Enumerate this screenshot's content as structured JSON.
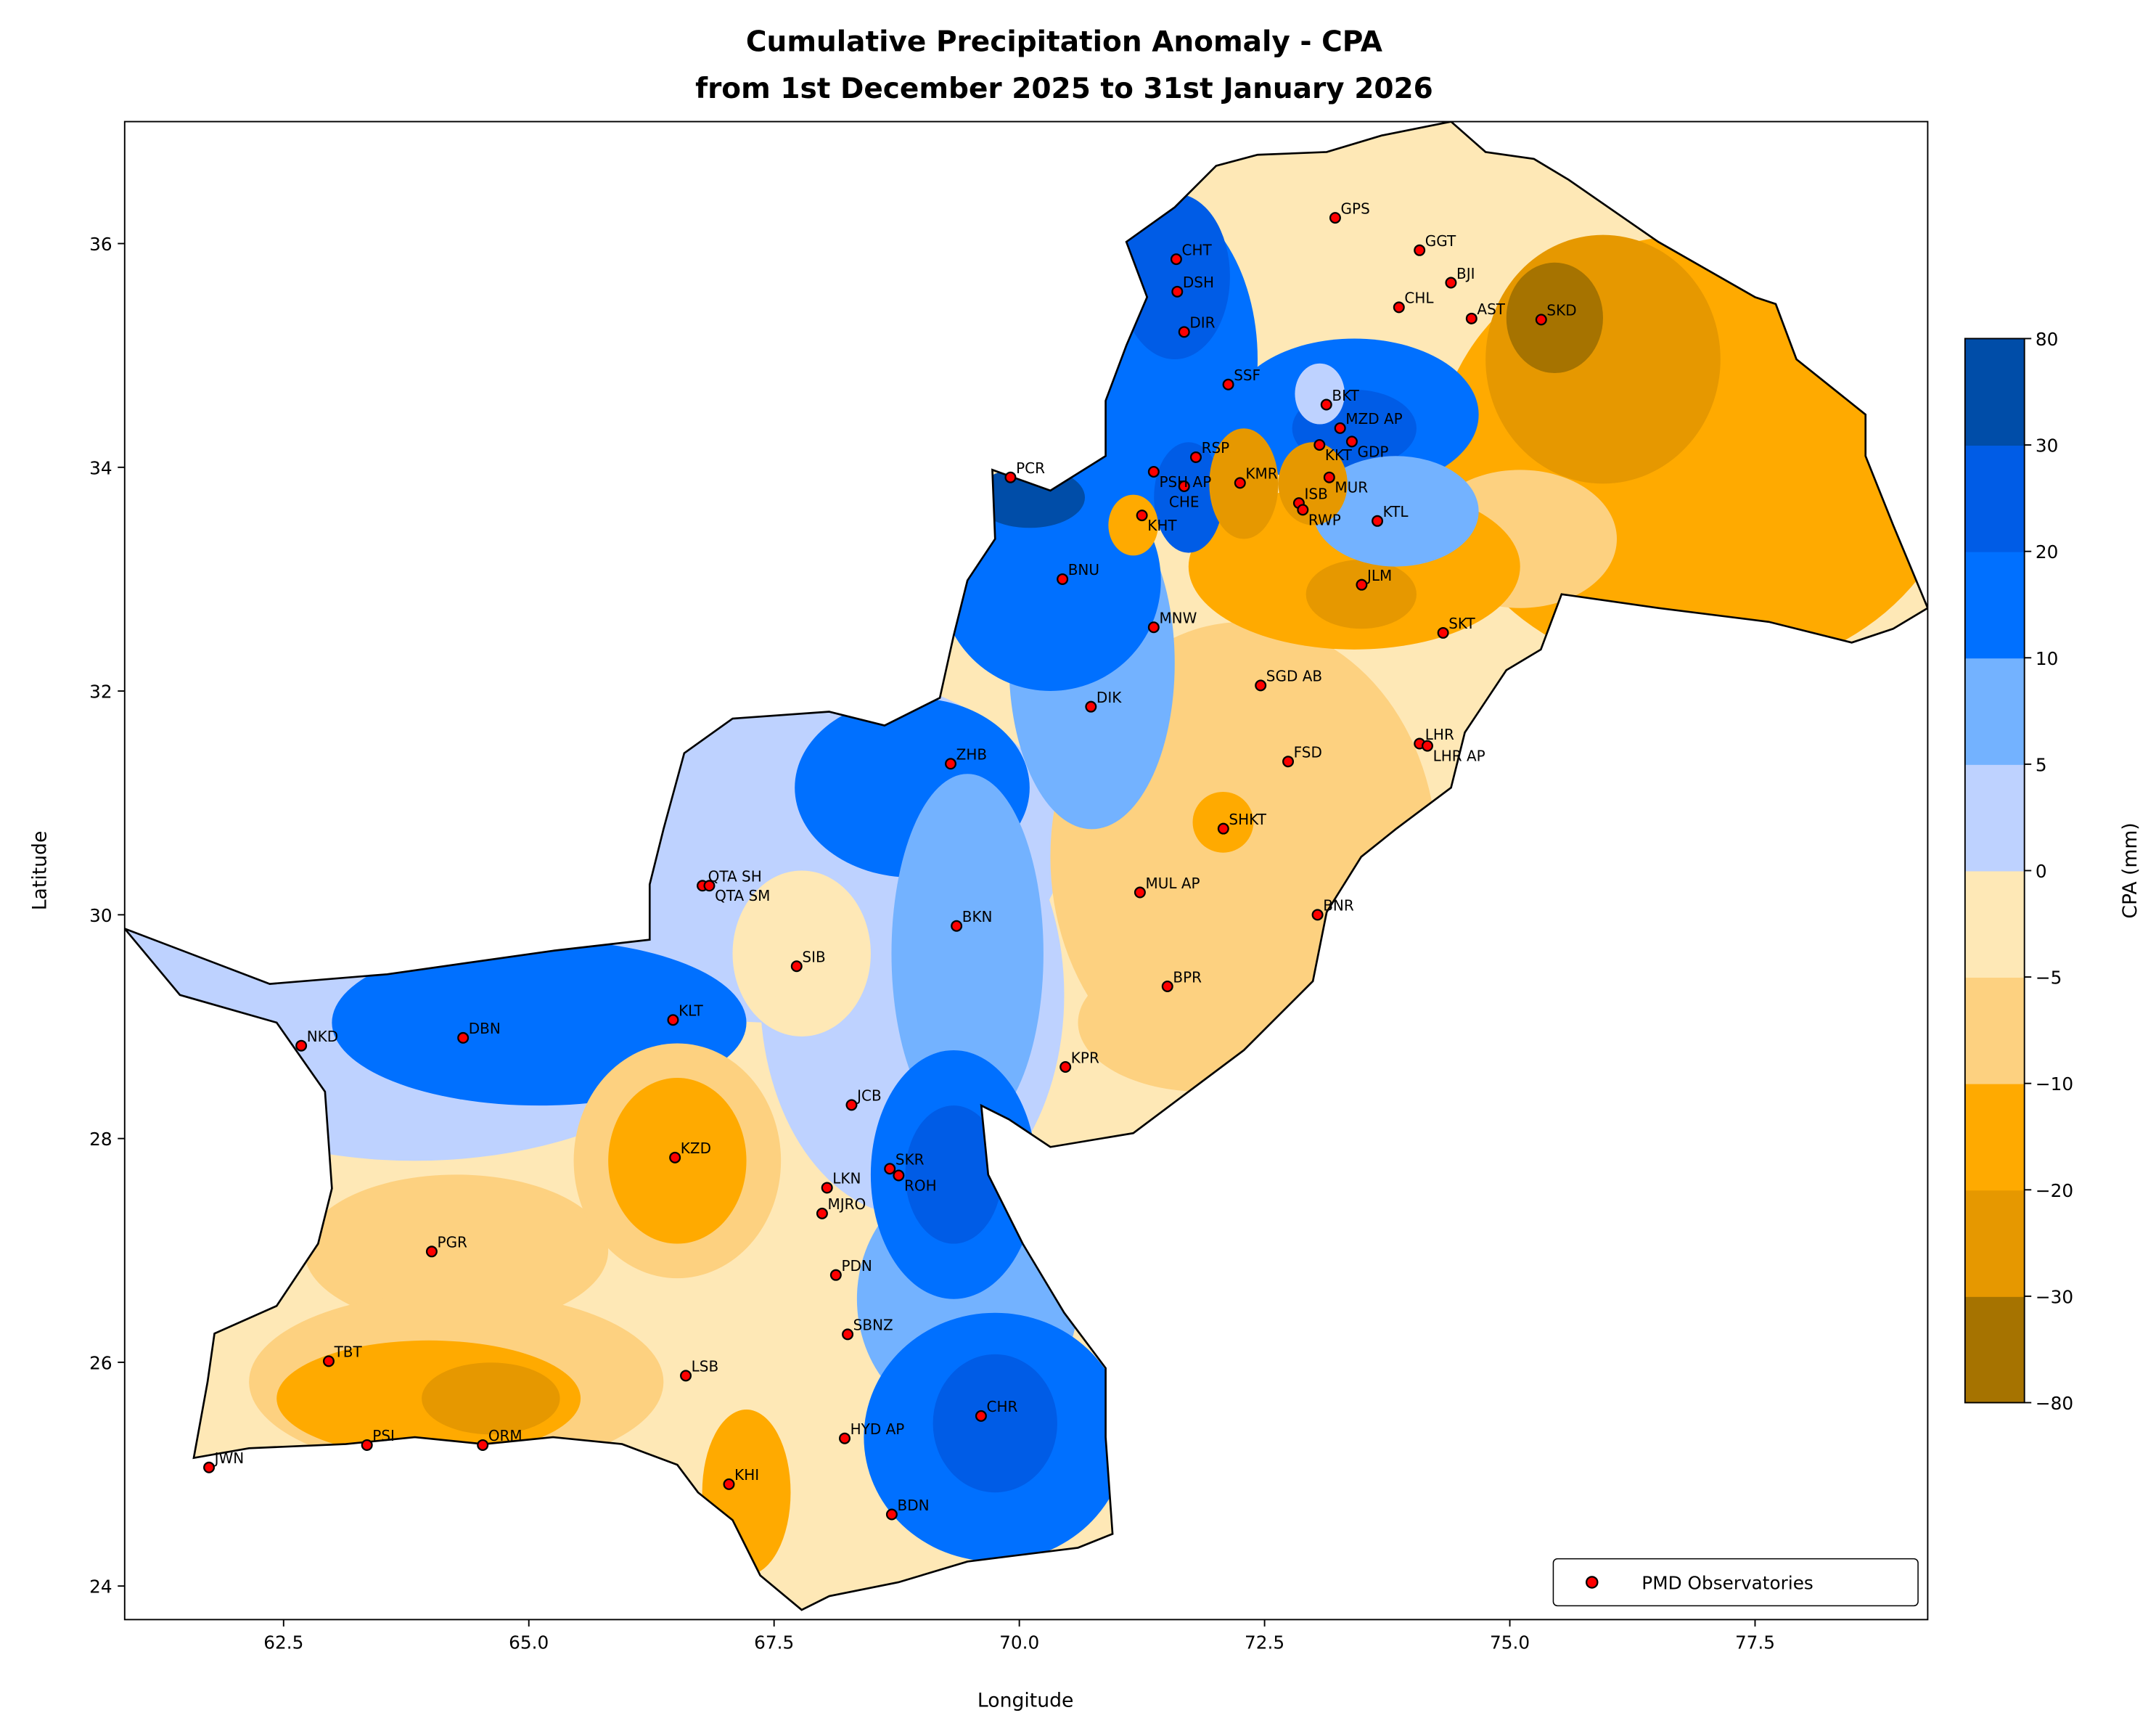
{
  "chart_data": {
    "type": "map-contour",
    "title": "Cumulative Precipitation Anomaly - CPA",
    "subtitle": "from 1st December 2025 to 31st January 2026",
    "xlabel": "Longitude",
    "ylabel": "Latitude",
    "xlim": [
      60.88,
      79.26
    ],
    "ylim": [
      23.7,
      37.09
    ],
    "xticks": [
      "62.5",
      "65.0",
      "67.5",
      "70.0",
      "72.5",
      "75.0",
      "77.5"
    ],
    "yticks": [
      "24",
      "26",
      "28",
      "30",
      "32",
      "34",
      "36"
    ],
    "grid": false,
    "colorbar": {
      "label": "CPA (mm)",
      "levels": [
        -80,
        -30,
        -20,
        -10,
        -5,
        0,
        5,
        10,
        20,
        30,
        80
      ],
      "tick_labels": [
        "−80",
        "−30",
        "−20",
        "−10",
        "−5",
        "0",
        "5",
        "10",
        "20",
        "30",
        "80"
      ],
      "colors": [
        "#a67300",
        "#e69800",
        "#ffaa00",
        "#fdd180",
        "#fee8b6",
        "#bed2ff",
        "#73b2ff",
        "#0070ff",
        "#005ce6",
        "#004da8"
      ]
    },
    "legend": {
      "label": "PMD Observatories",
      "position": "lower-right",
      "marker_color": "#ff0000"
    },
    "stations": [
      {
        "code": "GPS",
        "lon": 73.22,
        "lat": 36.23
      },
      {
        "code": "GGT",
        "lon": 74.08,
        "lat": 35.94
      },
      {
        "code": "BJI",
        "lon": 74.4,
        "lat": 35.65
      },
      {
        "code": "CHL",
        "lon": 73.87,
        "lat": 35.43
      },
      {
        "code": "AST",
        "lon": 74.61,
        "lat": 35.33
      },
      {
        "code": "SKD",
        "lon": 75.32,
        "lat": 35.32
      },
      {
        "code": "CHT",
        "lon": 71.6,
        "lat": 35.86
      },
      {
        "code": "DSH",
        "lon": 71.61,
        "lat": 35.57
      },
      {
        "code": "DIR",
        "lon": 71.68,
        "lat": 35.21
      },
      {
        "code": "SSF",
        "lon": 72.13,
        "lat": 34.74
      },
      {
        "code": "BKT",
        "lon": 73.13,
        "lat": 34.56
      },
      {
        "code": "MZD AP",
        "lon": 73.27,
        "lat": 34.35
      },
      {
        "code": "KKT",
        "lon": 73.06,
        "lat": 34.2
      },
      {
        "code": "GDP",
        "lon": 73.39,
        "lat": 34.23
      },
      {
        "code": "RSP",
        "lon": 71.8,
        "lat": 34.09
      },
      {
        "code": "PSH AP",
        "lon": 71.37,
        "lat": 33.96
      },
      {
        "code": "PCR",
        "lon": 69.91,
        "lat": 33.91
      },
      {
        "code": "KMR",
        "lon": 72.25,
        "lat": 33.86
      },
      {
        "code": "CHE",
        "lon": 71.68,
        "lat": 33.83
      },
      {
        "code": "MUR",
        "lon": 73.16,
        "lat": 33.91
      },
      {
        "code": "ISB",
        "lon": 72.85,
        "lat": 33.68
      },
      {
        "code": "RWP",
        "lon": 72.89,
        "lat": 33.62
      },
      {
        "code": "KTL",
        "lon": 73.65,
        "lat": 33.52
      },
      {
        "code": "KHT",
        "lon": 71.25,
        "lat": 33.57
      },
      {
        "code": "BNU",
        "lon": 70.44,
        "lat": 33.0
      },
      {
        "code": "JLM",
        "lon": 73.49,
        "lat": 32.95
      },
      {
        "code": "MNW",
        "lon": 71.37,
        "lat": 32.57
      },
      {
        "code": "SKT",
        "lon": 74.32,
        "lat": 32.52
      },
      {
        "code": "SGD AB",
        "lon": 72.46,
        "lat": 32.05
      },
      {
        "code": "DIK",
        "lon": 70.73,
        "lat": 31.86
      },
      {
        "code": "LHR",
        "lon": 74.08,
        "lat": 31.53
      },
      {
        "code": "LHR AP",
        "lon": 74.16,
        "lat": 31.51
      },
      {
        "code": "FSD",
        "lon": 72.74,
        "lat": 31.37
      },
      {
        "code": "ZHB",
        "lon": 69.3,
        "lat": 31.35
      },
      {
        "code": "SHKT",
        "lon": 72.08,
        "lat": 30.77
      },
      {
        "code": "QTA SH",
        "lon": 66.77,
        "lat": 30.26
      },
      {
        "code": "QTA SM",
        "lon": 66.84,
        "lat": 30.26
      },
      {
        "code": "MUL AP",
        "lon": 71.23,
        "lat": 30.2
      },
      {
        "code": "BNR",
        "lon": 73.04,
        "lat": 30.0
      },
      {
        "code": "BKN",
        "lon": 69.36,
        "lat": 29.9
      },
      {
        "code": "SIB",
        "lon": 67.73,
        "lat": 29.54
      },
      {
        "code": "BPR",
        "lon": 71.51,
        "lat": 29.36
      },
      {
        "code": "KLT",
        "lon": 66.47,
        "lat": 29.06
      },
      {
        "code": "DBN",
        "lon": 64.33,
        "lat": 28.9
      },
      {
        "code": "NKD",
        "lon": 62.68,
        "lat": 28.83
      },
      {
        "code": "KPR",
        "lon": 70.47,
        "lat": 28.64
      },
      {
        "code": "JCB",
        "lon": 68.29,
        "lat": 28.3
      },
      {
        "code": "KZD",
        "lon": 66.49,
        "lat": 27.83
      },
      {
        "code": "SKR",
        "lon": 68.68,
        "lat": 27.73
      },
      {
        "code": "ROH",
        "lon": 68.77,
        "lat": 27.67
      },
      {
        "code": "LKN",
        "lon": 68.04,
        "lat": 27.56
      },
      {
        "code": "MJRO",
        "lon": 67.99,
        "lat": 27.33
      },
      {
        "code": "PGR",
        "lon": 64.01,
        "lat": 26.99
      },
      {
        "code": "PDN",
        "lon": 68.13,
        "lat": 26.78
      },
      {
        "code": "SBNZ",
        "lon": 68.25,
        "lat": 26.25
      },
      {
        "code": "TBT",
        "lon": 62.96,
        "lat": 26.01
      },
      {
        "code": "LSB",
        "lon": 66.6,
        "lat": 25.88
      },
      {
        "code": "CHR",
        "lon": 69.61,
        "lat": 25.52
      },
      {
        "code": "PSI",
        "lon": 63.35,
        "lat": 25.26
      },
      {
        "code": "ORM",
        "lon": 64.53,
        "lat": 25.26
      },
      {
        "code": "HYD AP",
        "lon": 68.22,
        "lat": 25.32
      },
      {
        "code": "JWN",
        "lon": 61.74,
        "lat": 25.06
      },
      {
        "code": "KHI",
        "lon": 67.04,
        "lat": 24.91
      },
      {
        "code": "BDN",
        "lon": 68.7,
        "lat": 24.64
      }
    ]
  }
}
